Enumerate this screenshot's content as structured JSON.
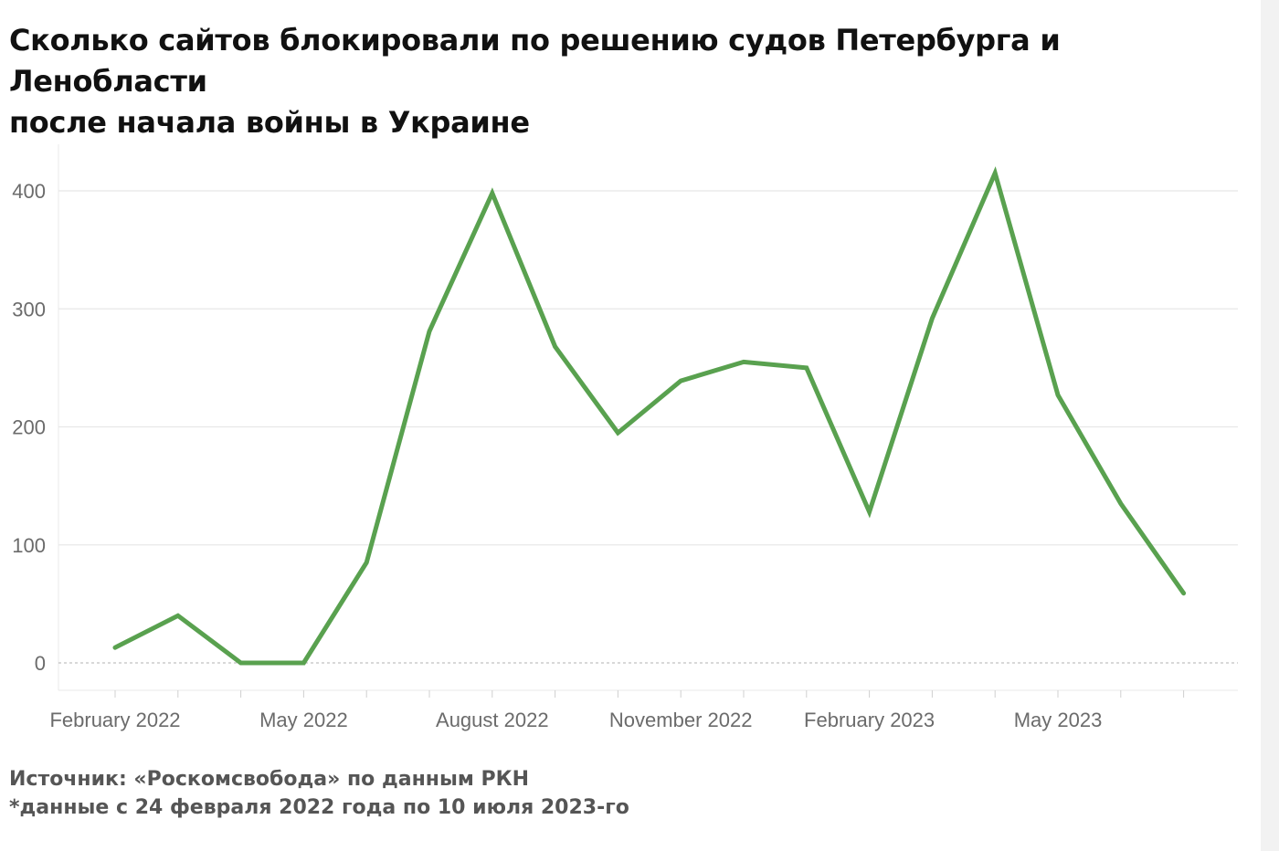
{
  "title": {
    "line1": "Сколько сайтов блокировали по решению судов Петербурга и Ленобласти",
    "line2": "после начала войны в Украине"
  },
  "footer": {
    "source": "Источник: «Роскомсвобода» по данным РКН",
    "note": "*данные с 24 февраля 2022 года по 10 июля 2023-го"
  },
  "colors": {
    "line": "#59a14f",
    "grid": "#e8e8e8",
    "zero_line": "#b0b0b0",
    "tick_text": "#6b6b6b"
  },
  "chart_data": {
    "type": "line",
    "x": [
      "2022-02",
      "2022-03",
      "2022-04",
      "2022-05",
      "2022-06",
      "2022-07",
      "2022-08",
      "2022-09",
      "2022-10",
      "2022-11",
      "2022-12",
      "2023-01",
      "2023-02",
      "2023-03",
      "2023-04",
      "2023-05",
      "2023-06",
      "2023-07"
    ],
    "series": [
      {
        "values": [
          13,
          40,
          0,
          0,
          85,
          281,
          398,
          268,
          195,
          239,
          255,
          250,
          128,
          292,
          415,
          227,
          135,
          59
        ]
      }
    ],
    "ylim": [
      -20,
      440
    ],
    "y_ticks": [
      0,
      100,
      200,
      300,
      400
    ],
    "x_tick_labels": [
      {
        "at": "2022-02",
        "label": "February 2022"
      },
      {
        "at": "2022-05",
        "label": "May 2022"
      },
      {
        "at": "2022-08",
        "label": "August 2022"
      },
      {
        "at": "2022-11",
        "label": "November 2022"
      },
      {
        "at": "2023-02",
        "label": "February 2023"
      },
      {
        "at": "2023-05",
        "label": "May 2023"
      }
    ],
    "grid": true,
    "legend": "none",
    "xlabel": "",
    "ylabel": ""
  }
}
